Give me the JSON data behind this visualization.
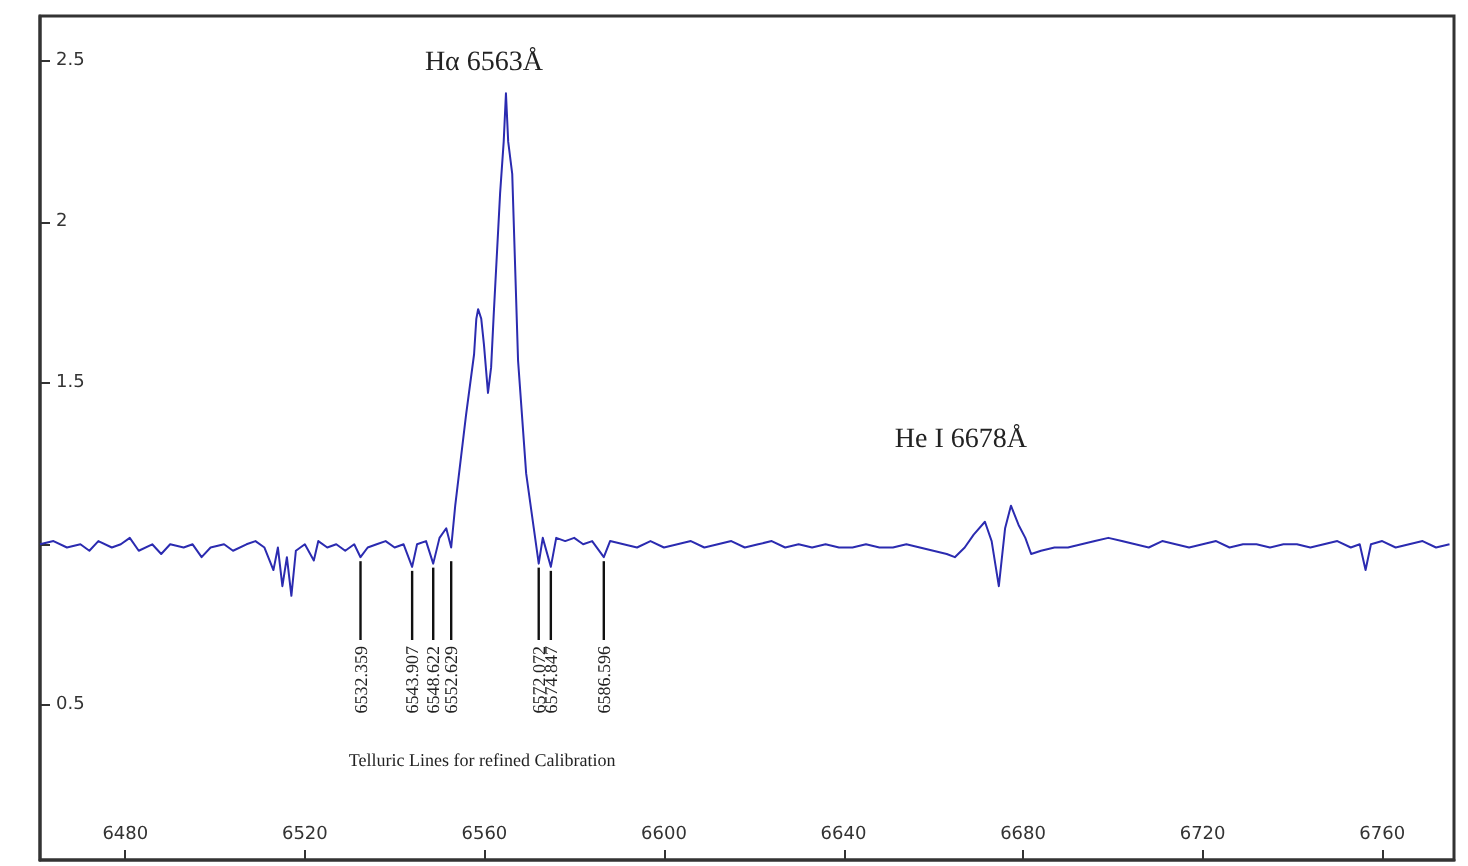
{
  "chart_data": {
    "type": "line",
    "x": [
      6461,
      6464,
      6467,
      6470,
      6472,
      6474,
      6477,
      6479,
      6481,
      6483,
      6486,
      6488,
      6490,
      6493,
      6495,
      6497,
      6499,
      6502,
      6504,
      6507,
      6509,
      6511,
      6513,
      6514,
      6515,
      6516,
      6517,
      6518,
      6520,
      6522,
      6523,
      6525,
      6527,
      6529,
      6531,
      6532.4,
      6534,
      6536,
      6538,
      6540,
      6542,
      6543.9,
      6545,
      6547,
      6548.6,
      6550,
      6551.5,
      6552.6,
      6553.5,
      6555.9,
      6557.7,
      6558.2,
      6558.6,
      6559.3,
      6559.9,
      6560.8,
      6561.5,
      6562.1,
      6563.5,
      6564.3,
      6564.8,
      6565.3,
      6566.2,
      6567.5,
      6569.3,
      6571,
      6572.1,
      6573,
      6574.8,
      6576,
      6578,
      6580,
      6582,
      6584,
      6586.6,
      6588,
      6591,
      6594,
      6597,
      6600,
      6603,
      6606,
      6609,
      6612,
      6615,
      6618,
      6621,
      6624,
      6627,
      6630,
      6633,
      6636,
      6639,
      6642,
      6645,
      6648,
      6651,
      6654,
      6657,
      6660,
      6663,
      6664.8,
      6667,
      6669,
      6671.5,
      6673,
      6674.6,
      6676,
      6677.3,
      6679,
      6680.5,
      6681.8,
      6684,
      6687,
      6690,
      6693,
      6696,
      6699,
      6702,
      6705,
      6708,
      6711,
      6714,
      6717,
      6720,
      6723,
      6726,
      6729,
      6732,
      6735,
      6738,
      6741,
      6744,
      6747,
      6750,
      6753,
      6755,
      6756.3,
      6757.5,
      6760,
      6763,
      6766,
      6769,
      6772,
      6775
    ],
    "series": [
      {
        "color": "#2b2bb0",
        "values": [
          1.0,
          1.01,
          0.99,
          1.0,
          0.98,
          1.01,
          0.99,
          1.0,
          1.02,
          0.98,
          1.0,
          0.97,
          1.0,
          0.99,
          1.0,
          0.96,
          0.99,
          1.0,
          0.98,
          1.0,
          1.01,
          0.99,
          0.92,
          0.99,
          0.87,
          0.96,
          0.84,
          0.98,
          1.0,
          0.95,
          1.01,
          0.99,
          1.0,
          0.98,
          1.0,
          0.96,
          0.99,
          1.0,
          1.01,
          0.99,
          1.0,
          0.93,
          1.0,
          1.01,
          0.94,
          1.02,
          1.05,
          0.99,
          1.12,
          1.4,
          1.59,
          1.7,
          1.73,
          1.7,
          1.62,
          1.47,
          1.55,
          1.72,
          2.09,
          2.25,
          2.4,
          2.25,
          2.15,
          1.57,
          1.22,
          1.05,
          0.94,
          1.02,
          0.93,
          1.02,
          1.01,
          1.02,
          1.0,
          1.01,
          0.96,
          1.01,
          1.0,
          0.99,
          1.01,
          0.99,
          1.0,
          1.01,
          0.99,
          1.0,
          1.01,
          0.99,
          1.0,
          1.01,
          0.99,
          1.0,
          0.99,
          1.0,
          0.99,
          0.99,
          1.0,
          0.99,
          0.99,
          1.0,
          0.99,
          0.98,
          0.97,
          0.96,
          0.99,
          1.03,
          1.07,
          1.01,
          0.87,
          1.05,
          1.12,
          1.06,
          1.02,
          0.97,
          0.98,
          0.99,
          0.99,
          1.0,
          1.01,
          1.02,
          1.01,
          1.0,
          0.99,
          1.01,
          1.0,
          0.99,
          1.0,
          1.01,
          0.99,
          1.0,
          1.0,
          0.99,
          1.0,
          1.0,
          0.99,
          1.0,
          1.01,
          0.99,
          1.0,
          0.92,
          1.0,
          1.01,
          0.99,
          1.0,
          1.01,
          0.99,
          1.0
        ]
      }
    ],
    "xlim": [
      6461,
      6776
    ],
    "xticks": [
      6480,
      6520,
      6560,
      6600,
      6640,
      6680,
      6720,
      6760
    ],
    "ylim": [
      0.02,
      2.64
    ],
    "yticks": [
      0.5,
      {
        "value": 1,
        "label": null
      },
      1.5,
      2,
      2.5
    ],
    "grid": false,
    "marker": "none",
    "line_style": "solid",
    "annotations": [
      {
        "text": "Hα 6563Å",
        "x": 6564.8,
        "y": 2.4
      },
      {
        "text": "He I 6678Å",
        "x": 6677.3,
        "y": 1.12
      },
      {
        "text": "6532.359",
        "x": 6532.4,
        "y": 0.96
      },
      {
        "text": "6543.907",
        "x": 6543.9,
        "y": 0.93
      },
      {
        "text": "6548.622",
        "x": 6548.6,
        "y": 0.94
      },
      {
        "text": "6552.629",
        "x": 6552.6,
        "y": 0.96
      },
      {
        "text": "6572.072",
        "x": 6572.1,
        "y": 0.94
      },
      {
        "text": "6574.847",
        "x": 6574.8,
        "y": 0.93
      },
      {
        "text": "6586.596",
        "x": 6586.6,
        "y": 0.96
      },
      "Telluric Lines for refined Calibration"
    ]
  }
}
